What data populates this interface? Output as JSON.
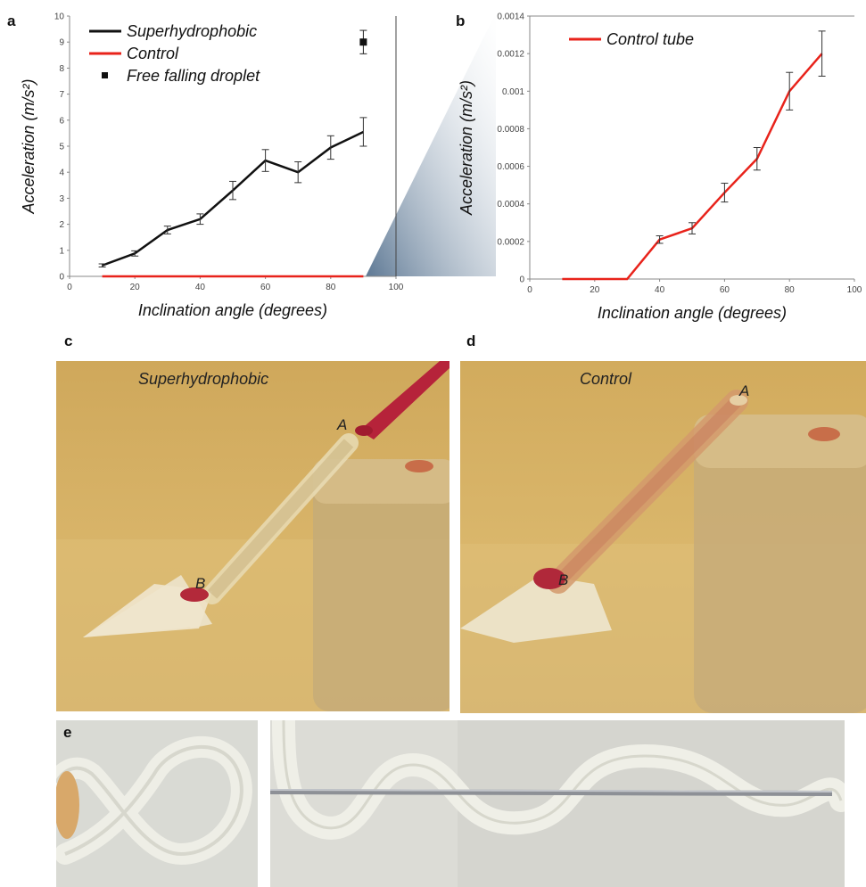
{
  "panels": {
    "a": "a",
    "b": "b",
    "c": "c",
    "d": "d",
    "e": "e"
  },
  "chart_data": [
    {
      "type": "line",
      "panel": "a",
      "xlabel": "Inclination angle (degrees)",
      "ylabel": "Acceleration (m/s²)",
      "xlim": [
        0,
        100
      ],
      "ylim": [
        0,
        10
      ],
      "xticks": [
        "0",
        "20",
        "40",
        "60",
        "80",
        "100"
      ],
      "yticks": [
        "0",
        "1",
        "2",
        "3",
        "4",
        "5",
        "6",
        "7",
        "8",
        "9",
        "10"
      ],
      "legend_position": "top-left",
      "series": [
        {
          "name": "Superhydrophobic",
          "color": "#111111",
          "x": [
            10,
            20,
            30,
            40,
            50,
            60,
            70,
            80,
            90
          ],
          "y": [
            0.42,
            0.88,
            1.78,
            2.2,
            3.3,
            4.45,
            4.0,
            4.95,
            5.55
          ],
          "err": [
            0.06,
            0.1,
            0.15,
            0.2,
            0.35,
            0.42,
            0.4,
            0.45,
            0.55
          ]
        },
        {
          "name": "Control",
          "color": "#e8231b",
          "x": [
            10,
            20,
            30,
            40,
            50,
            60,
            70,
            80,
            90
          ],
          "y": [
            0,
            0,
            0,
            0,
            0,
            0,
            0,
            0,
            0
          ]
        },
        {
          "name": "Free falling droplet",
          "color": "#111111",
          "marker": "square",
          "x": [
            90
          ],
          "y": [
            9.0
          ],
          "err": [
            0.45
          ]
        }
      ]
    },
    {
      "type": "line",
      "panel": "b",
      "xlabel": "Inclination angle (degrees)",
      "ylabel": "Acceleration (m/s²)",
      "xlim": [
        0,
        100
      ],
      "ylim": [
        0,
        0.0014
      ],
      "xticks": [
        "0",
        "20",
        "40",
        "60",
        "80",
        "100"
      ],
      "yticks": [
        "0",
        "0.0002",
        "0.0004",
        "0.0006",
        "0.0008",
        "0.001",
        "0.0012",
        "0.0014"
      ],
      "legend_position": "top-left",
      "series": [
        {
          "name": "Control tube",
          "color": "#e8231b",
          "x": [
            10,
            20,
            30,
            40,
            50,
            60,
            70,
            80,
            90
          ],
          "y": [
            0,
            0,
            0,
            0.00021,
            0.00027,
            0.00046,
            0.00064,
            0.001,
            0.0012
          ],
          "err": [
            0,
            0,
            0,
            2e-05,
            3e-05,
            5e-05,
            6e-05,
            0.0001,
            0.00012
          ]
        }
      ]
    }
  ],
  "photos": {
    "c": {
      "caption": "Superhydrophobic",
      "point_a": "A",
      "point_b": "B"
    },
    "d": {
      "caption": "Control",
      "point_a": "A",
      "point_b": "B"
    }
  }
}
